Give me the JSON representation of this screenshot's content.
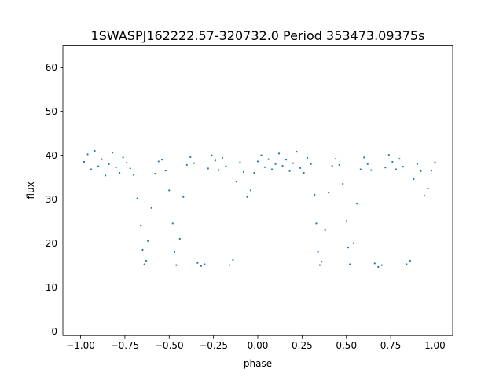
{
  "chart_data": {
    "type": "scatter",
    "title": "1SWASPJ162222.57-320732.0 Period 353473.09375s",
    "xlabel": "phase",
    "ylabel": "flux",
    "xlim": [
      -1.1,
      1.1
    ],
    "ylim": [
      -1.0,
      65.0
    ],
    "xticks": [
      -1.0,
      -0.75,
      -0.5,
      -0.25,
      0.0,
      0.25,
      0.5,
      0.75,
      1.0
    ],
    "xtick_labels": [
      "−1.00",
      "−0.75",
      "−0.50",
      "−0.25",
      "0.00",
      "0.25",
      "0.50",
      "0.75",
      "1.00"
    ],
    "yticks": [
      0,
      10,
      20,
      30,
      40,
      50,
      60
    ],
    "ytick_labels": [
      "0",
      "10",
      "20",
      "30",
      "40",
      "50",
      "60"
    ],
    "grid": false,
    "legend": "none",
    "point_color": "#1f77b4",
    "series": [
      {
        "points": [
          [
            -0.98,
            38.5
          ],
          [
            -0.96,
            40.2
          ],
          [
            -0.94,
            36.8
          ],
          [
            -0.92,
            41.0
          ],
          [
            -0.9,
            37.5
          ],
          [
            -0.88,
            39.1
          ],
          [
            -0.86,
            35.4
          ],
          [
            -0.84,
            38.0
          ],
          [
            -0.82,
            40.6
          ],
          [
            -0.8,
            37.2
          ],
          [
            -0.78,
            36.0
          ],
          [
            -0.76,
            39.5
          ],
          [
            -0.74,
            38.3
          ],
          [
            -0.72,
            37.0
          ],
          [
            -0.7,
            35.5
          ],
          [
            -0.68,
            30.2
          ],
          [
            -0.66,
            24.0
          ],
          [
            -0.65,
            18.5
          ],
          [
            -0.64,
            15.2
          ],
          [
            -0.63,
            16.0
          ],
          [
            -0.62,
            20.5
          ],
          [
            -0.6,
            28.0
          ],
          [
            -0.58,
            35.8
          ],
          [
            -0.56,
            38.6
          ],
          [
            -0.54,
            39.0
          ],
          [
            -0.52,
            36.5
          ],
          [
            -0.5,
            32.0
          ],
          [
            -0.48,
            24.5
          ],
          [
            -0.47,
            18.0
          ],
          [
            -0.46,
            15.0
          ],
          [
            -0.44,
            21.0
          ],
          [
            -0.42,
            30.5
          ],
          [
            -0.4,
            37.8
          ],
          [
            -0.38,
            39.6
          ],
          [
            -0.36,
            38.2
          ],
          [
            -0.34,
            15.5
          ],
          [
            -0.32,
            14.8
          ],
          [
            -0.3,
            15.2
          ],
          [
            -0.28,
            37.0
          ],
          [
            -0.26,
            40.0
          ],
          [
            -0.24,
            38.8
          ],
          [
            -0.22,
            36.6
          ],
          [
            -0.2,
            39.4
          ],
          [
            -0.18,
            37.5
          ],
          [
            -0.16,
            15.0
          ],
          [
            -0.14,
            16.2
          ],
          [
            -0.12,
            34.0
          ],
          [
            -0.1,
            38.4
          ],
          [
            -0.08,
            36.2
          ],
          [
            -0.06,
            30.5
          ],
          [
            -0.04,
            32.0
          ],
          [
            -0.02,
            36.0
          ],
          [
            0.0,
            38.6
          ],
          [
            0.02,
            40.0
          ],
          [
            0.04,
            37.3
          ],
          [
            0.06,
            39.1
          ],
          [
            0.08,
            36.8
          ],
          [
            0.1,
            38.0
          ],
          [
            0.12,
            40.4
          ],
          [
            0.14,
            37.6
          ],
          [
            0.16,
            39.0
          ],
          [
            0.18,
            36.4
          ],
          [
            0.2,
            38.2
          ],
          [
            0.22,
            40.8
          ],
          [
            0.24,
            37.1
          ],
          [
            0.26,
            36.0
          ],
          [
            0.28,
            39.4
          ],
          [
            0.3,
            38.0
          ],
          [
            0.32,
            31.0
          ],
          [
            0.33,
            24.5
          ],
          [
            0.34,
            18.0
          ],
          [
            0.35,
            15.0
          ],
          [
            0.36,
            15.8
          ],
          [
            0.38,
            23.0
          ],
          [
            0.4,
            31.5
          ],
          [
            0.42,
            37.6
          ],
          [
            0.44,
            39.2
          ],
          [
            0.46,
            37.8
          ],
          [
            0.48,
            33.5
          ],
          [
            0.5,
            25.0
          ],
          [
            0.51,
            19.0
          ],
          [
            0.52,
            15.2
          ],
          [
            0.54,
            20.0
          ],
          [
            0.56,
            29.0
          ],
          [
            0.58,
            36.8
          ],
          [
            0.6,
            39.5
          ],
          [
            0.62,
            38.0
          ],
          [
            0.64,
            36.6
          ],
          [
            0.66,
            15.4
          ],
          [
            0.68,
            14.6
          ],
          [
            0.7,
            15.0
          ],
          [
            0.72,
            37.2
          ],
          [
            0.74,
            40.1
          ],
          [
            0.76,
            38.5
          ],
          [
            0.78,
            36.8
          ],
          [
            0.8,
            39.2
          ],
          [
            0.82,
            37.4
          ],
          [
            0.84,
            15.2
          ],
          [
            0.86,
            16.0
          ],
          [
            0.88,
            34.6
          ],
          [
            0.9,
            38.0
          ],
          [
            0.92,
            36.4
          ],
          [
            0.94,
            30.8
          ],
          [
            0.96,
            32.4
          ],
          [
            0.98,
            36.5
          ],
          [
            1.0,
            38.4
          ]
        ]
      }
    ]
  }
}
